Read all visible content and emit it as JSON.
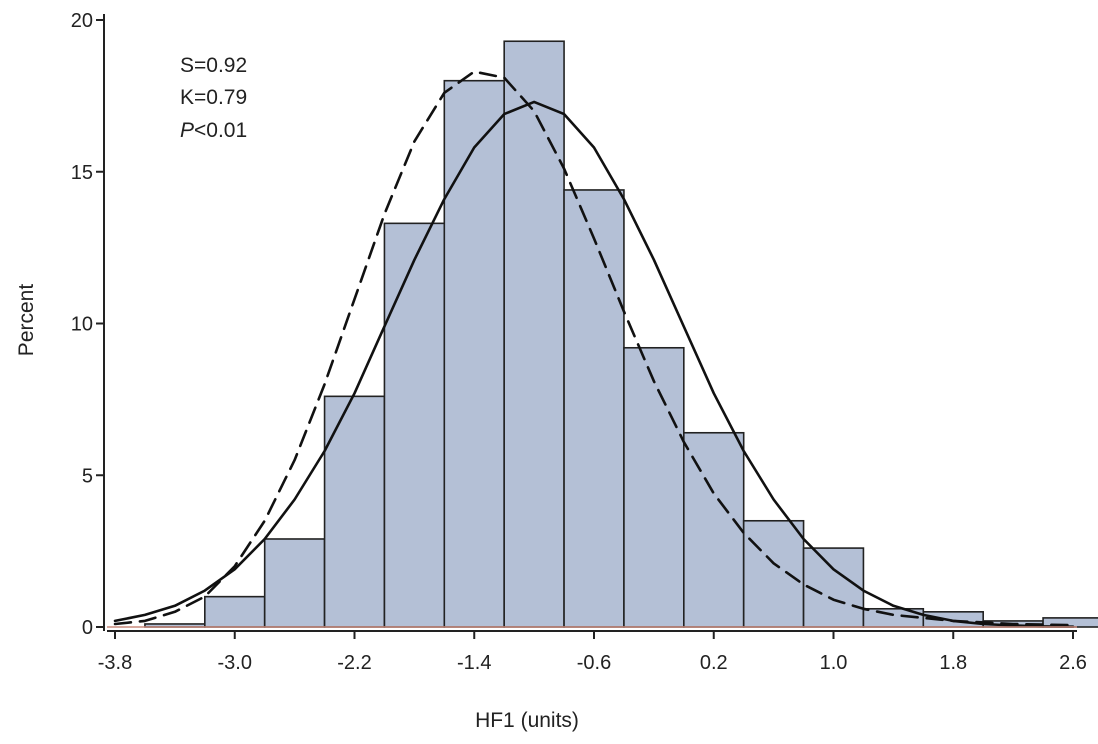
{
  "chart_data": {
    "type": "bar",
    "title": "",
    "xlabel": "HF1 (units)",
    "ylabel": "Percent",
    "xlim": [
      -3.8,
      2.6
    ],
    "ylim": [
      0,
      20
    ],
    "grid": false,
    "bar_color": "#b4c0d6",
    "bar_edge_color": "#222222",
    "x_ticks": [
      "-3.8",
      "-3.0",
      "-2.2",
      "-1.4",
      "-0.6",
      "0.2",
      "1.0",
      "1.8",
      "2.6"
    ],
    "x_tick_values": [
      -3.8,
      -3.0,
      -2.2,
      -1.4,
      -0.6,
      0.2,
      1.0,
      1.8,
      2.6
    ],
    "y_ticks": [
      "0",
      "5",
      "10",
      "15",
      "20"
    ],
    "y_tick_values": [
      0,
      5,
      10,
      15,
      20
    ],
    "bin_width": 0.4,
    "bin_starts": [
      -3.6,
      -3.2,
      -2.8,
      -2.4,
      -2.0,
      -1.6,
      -1.2,
      -0.8,
      -0.4,
      0.0,
      0.4,
      0.8,
      1.2,
      1.6,
      2.0,
      2.4
    ],
    "values": [
      0.1,
      1.0,
      2.9,
      7.6,
      13.3,
      18.0,
      19.3,
      14.4,
      9.2,
      6.4,
      3.5,
      2.6,
      0.6,
      0.5,
      0.2,
      0.3
    ],
    "series": [
      {
        "style": "solid",
        "x": [
          -3.8,
          -3.6,
          -3.4,
          -3.2,
          -3.0,
          -2.8,
          -2.6,
          -2.4,
          -2.2,
          -2.0,
          -1.8,
          -1.6,
          -1.4,
          -1.2,
          -1.0,
          -0.8,
          -0.6,
          -0.4,
          -0.2,
          0.0,
          0.2,
          0.4,
          0.6,
          0.8,
          1.0,
          1.2,
          1.4,
          1.6,
          1.8,
          2.0,
          2.2,
          2.4,
          2.6
        ],
        "values": [
          0.2,
          0.4,
          0.7,
          1.2,
          1.9,
          2.9,
          4.2,
          5.8,
          7.7,
          9.9,
          12.1,
          14.1,
          15.8,
          16.9,
          17.3,
          16.9,
          15.8,
          14.1,
          12.1,
          9.9,
          7.7,
          5.8,
          4.2,
          2.9,
          1.9,
          1.2,
          0.7,
          0.4,
          0.2,
          0.1,
          0.05,
          0.02,
          0.01
        ]
      },
      {
        "style": "dashed",
        "x": [
          -3.8,
          -3.6,
          -3.4,
          -3.2,
          -3.0,
          -2.8,
          -2.6,
          -2.4,
          -2.2,
          -2.0,
          -1.8,
          -1.6,
          -1.4,
          -1.2,
          -1.0,
          -0.8,
          -0.6,
          -0.4,
          -0.2,
          0.0,
          0.2,
          0.4,
          0.6,
          0.8,
          1.0,
          1.2,
          1.4,
          1.6,
          1.8,
          2.0,
          2.2,
          2.4,
          2.6
        ],
        "values": [
          0.1,
          0.2,
          0.5,
          1.0,
          2.0,
          3.5,
          5.5,
          8.0,
          10.8,
          13.6,
          16.0,
          17.6,
          18.3,
          18.1,
          17.0,
          15.1,
          12.8,
          10.4,
          8.1,
          6.1,
          4.4,
          3.1,
          2.1,
          1.4,
          0.9,
          0.6,
          0.4,
          0.3,
          0.2,
          0.15,
          0.1,
          0.08,
          0.06
        ]
      }
    ],
    "annotations": {
      "skewness": "S=0.92",
      "kurtosis": "K=0.79",
      "p_prefix": "P",
      "p_suffix": "<0.01"
    }
  }
}
